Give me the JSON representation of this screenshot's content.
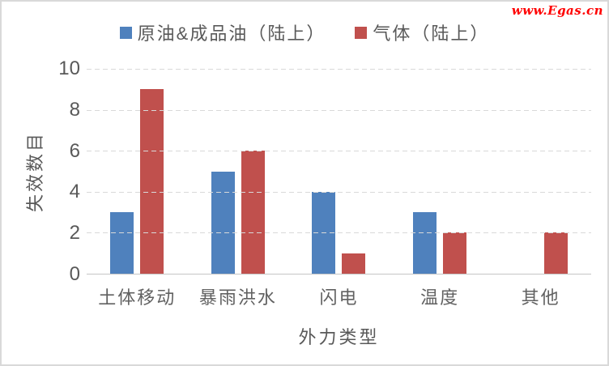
{
  "watermark": {
    "text": "www.Egas.cn",
    "color": "#FF0000"
  },
  "legend": [
    {
      "label": "原油&成品油（陆上）",
      "color": "#4F81BD"
    },
    {
      "label": "气体（陆上）",
      "color": "#C0504D"
    }
  ],
  "chart_data": {
    "type": "bar",
    "title": "",
    "categories": [
      "土体移动",
      "暴雨洪水",
      "闪电",
      "温度",
      "其他"
    ],
    "series": [
      {
        "name": "原油&成品油（陆上）",
        "color": "#4F81BD",
        "values": [
          3,
          5,
          4,
          3,
          0
        ]
      },
      {
        "name": "气体（陆上）",
        "color": "#C0504D",
        "values": [
          9,
          6,
          1,
          2,
          2
        ]
      }
    ],
    "xlabel": "外力类型",
    "ylabel": "失效数目",
    "ylim": [
      0,
      10
    ],
    "yticks": [
      0,
      2,
      4,
      6,
      8,
      10
    ],
    "grid": "dashed-horizontal",
    "legend_position": "top-center",
    "colors": {
      "text": "#595959",
      "gridline": "#D9D9D9",
      "axis_line": "#C6C6C6",
      "background": "#FFFFFF",
      "border": "#D9D9D9"
    }
  }
}
